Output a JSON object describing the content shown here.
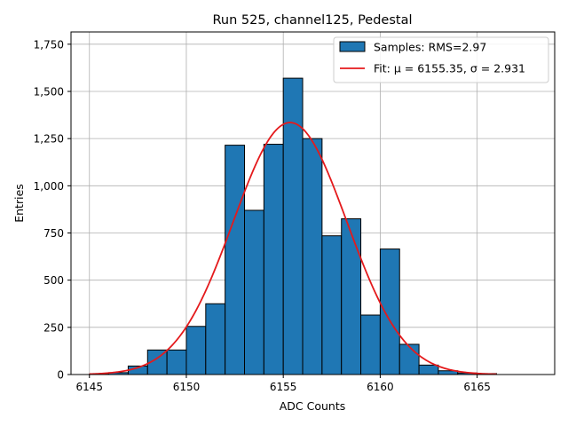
{
  "chart_data": {
    "type": "bar",
    "title": "Run 525, channel125, Pedestal",
    "xlabel": "ADC Counts",
    "ylabel": "Entries",
    "xlim": [
      6144.05,
      6169.0
    ],
    "ylim": [
      0,
      1815
    ],
    "xticks": [
      6145,
      6150,
      6155,
      6160,
      6165
    ],
    "yticks": [
      0,
      250,
      500,
      750,
      1000,
      1250,
      1500,
      1750
    ],
    "grid": true,
    "legend_position": "top-right",
    "histogram": {
      "name": "Samples: RMS=2.97",
      "color": "#1f77b4",
      "bin_width": 1.0,
      "bin_starts": [
        6145,
        6146,
        6147,
        6148,
        6149,
        6150,
        6151,
        6152,
        6153,
        6154,
        6155,
        6156,
        6157,
        6158,
        6159,
        6160,
        6161,
        6162,
        6163,
        6164,
        6165
      ],
      "values": [
        2,
        10,
        45,
        130,
        130,
        255,
        375,
        1215,
        870,
        1220,
        1570,
        1250,
        735,
        825,
        315,
        665,
        160,
        50,
        20,
        8,
        5
      ]
    },
    "fit": {
      "name": "Fit: μ = 6155.35, σ = 2.931",
      "color": "#e41a1c",
      "mu": 6155.35,
      "sigma": 2.931,
      "amplitude": 1335,
      "x_range": [
        6145,
        6166
      ]
    }
  }
}
